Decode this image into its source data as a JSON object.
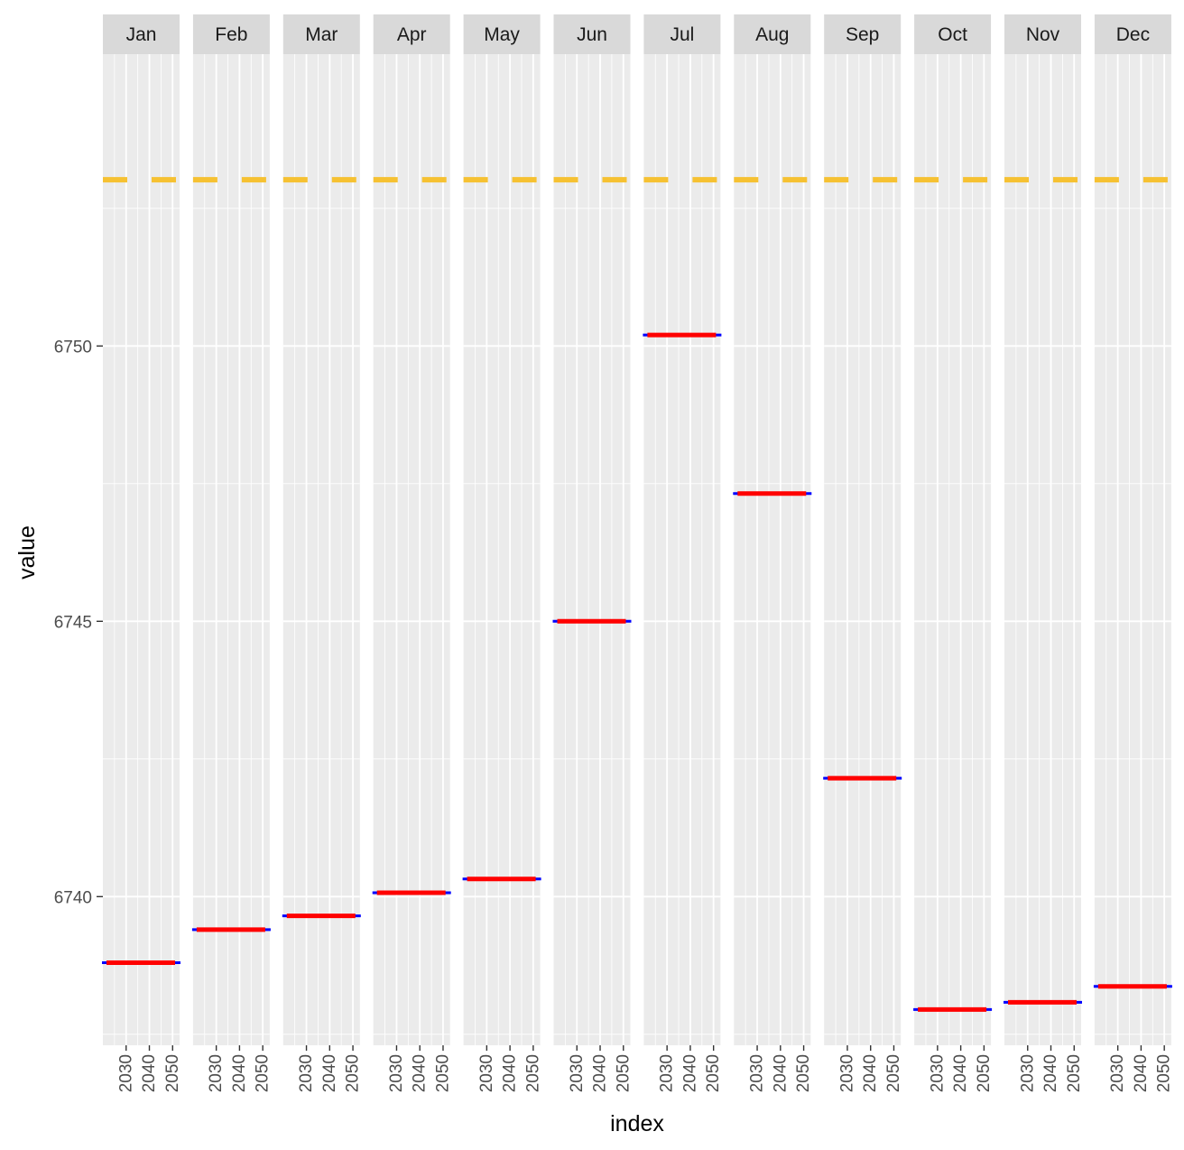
{
  "chart_data": {
    "type": "line",
    "facet_by": "month",
    "facets": [
      {
        "label": "Jan",
        "value": 6738.8
      },
      {
        "label": "Feb",
        "value": 6739.4
      },
      {
        "label": "Mar",
        "value": 6739.65
      },
      {
        "label": "Apr",
        "value": 6740.07
      },
      {
        "label": "May",
        "value": 6740.32
      },
      {
        "label": "Jun",
        "value": 6745.0
      },
      {
        "label": "Jul",
        "value": 6750.2
      },
      {
        "label": "Aug",
        "value": 6747.32
      },
      {
        "label": "Sep",
        "value": 6742.15
      },
      {
        "label": "Oct",
        "value": 6737.95
      },
      {
        "label": "Nov",
        "value": 6738.08
      },
      {
        "label": "Dec",
        "value": 6738.37
      }
    ],
    "reference_line": {
      "value": 6753.02,
      "style": "dashed",
      "color": "#F6C132"
    },
    "series_color": "#FF0000",
    "interval_color": "#0000FF",
    "xlabel": "index",
    "ylabel": "value",
    "x_tick_labels": [
      "2030",
      "2040",
      "2050"
    ],
    "x_range": [
      2020,
      2053
    ],
    "y_ticks": [
      6740,
      6745,
      6750
    ],
    "ylim": [
      6737.3,
      6755.3
    ],
    "grid": true,
    "panel_background": "#EBEBEB",
    "strip_background": "#D9D9D9"
  }
}
